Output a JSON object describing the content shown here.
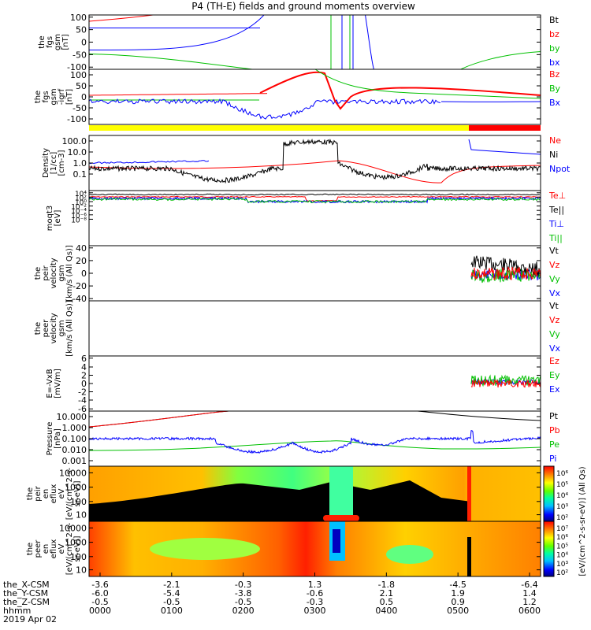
{
  "title": "P4 (TH-E) fields and ground moments overview",
  "colors": {
    "black": "#000000",
    "red": "#ff0000",
    "green": "#00c000",
    "blue": "#0000ff",
    "yellow": "#ffff00"
  },
  "chart_data": [
    {
      "type": "line",
      "panel": "fgs_gsm",
      "ylabel": [
        "the",
        "fgs",
        "gsm",
        "[nT]"
      ],
      "ylim": [
        -100,
        100
      ],
      "ticks": [
        "100",
        "50",
        "0",
        "-50",
        "-100"
      ],
      "legend": [
        {
          "name": "Bt",
          "color": "black"
        },
        {
          "name": "bz",
          "color": "red"
        },
        {
          "name": "by",
          "color": "green"
        },
        {
          "name": "bx",
          "color": "blue"
        }
      ]
    },
    {
      "type": "line",
      "panel": "fgs_gsm_igrf",
      "ylabel": [
        "the",
        "fgs",
        "gsm",
        "-igrf",
        "[nT]"
      ],
      "ylim": [
        -125,
        125
      ],
      "ticks": [
        "100",
        "50",
        "0",
        "-50",
        "-100"
      ],
      "legend": [
        {
          "name": "Bz",
          "color": "red"
        },
        {
          "name": "By",
          "color": "green"
        },
        {
          "name": "Bx",
          "color": "blue"
        }
      ]
    },
    {
      "type": "line",
      "panel": "density",
      "ylabel": [
        "Density",
        "[1/cc]",
        "[cm-3]"
      ],
      "scale": "log",
      "ylim": [
        0.02,
        200
      ],
      "ticks": [
        "100.0",
        "10.0",
        "1.0",
        "0.1"
      ],
      "legend": [
        {
          "name": "Ne",
          "color": "red"
        },
        {
          "name": "Ni",
          "color": "black"
        },
        {
          "name": "Npot",
          "color": "blue"
        }
      ]
    },
    {
      "type": "line",
      "panel": "temperature",
      "ylabel": [
        "moqt3",
        "[eV]"
      ],
      "scale": "log",
      "ticks": [
        "10⁴",
        "10²",
        "10⁰",
        "10⁻²",
        "10⁻⁴",
        "10⁻⁶",
        "10⁻⁸"
      ],
      "legend": [
        {
          "name": "Te⊥",
          "color": "red"
        },
        {
          "name": "Te||",
          "color": "black"
        },
        {
          "name": "Ti⊥",
          "color": "blue"
        },
        {
          "name": "Ti||",
          "color": "green"
        }
      ]
    },
    {
      "type": "line",
      "panel": "peir_velocity",
      "ylabel": [
        "the",
        "peir",
        "velocity",
        "gsm",
        "[km/s (All Qs)]"
      ],
      "ylim": [
        -40,
        40
      ],
      "ticks": [
        "40",
        "20",
        "0",
        "-20",
        "-40"
      ],
      "legend": [
        {
          "name": "Vt",
          "color": "black"
        },
        {
          "name": "Vz",
          "color": "red"
        },
        {
          "name": "Vy",
          "color": "green"
        },
        {
          "name": "Vx",
          "color": "blue"
        }
      ]
    },
    {
      "type": "line",
      "panel": "peer_velocity",
      "ylabel": [
        "the",
        "peer",
        "velocity",
        "gsm",
        "[km/s (All Qs)]"
      ],
      "legend": [
        {
          "name": "Vt",
          "color": "black"
        },
        {
          "name": "Vz",
          "color": "red"
        },
        {
          "name": "Vy",
          "color": "green"
        },
        {
          "name": "Vx",
          "color": "blue"
        }
      ]
    },
    {
      "type": "line",
      "panel": "e_vxb",
      "ylabel": [
        "E=-VxB",
        "[mV/m]"
      ],
      "ylim": [
        -6,
        6
      ],
      "ticks": [
        "6",
        "4",
        "2",
        "0",
        "-2",
        "-4",
        "-6"
      ],
      "legend": [
        {
          "name": "Ez",
          "color": "red"
        },
        {
          "name": "Ey",
          "color": "green"
        },
        {
          "name": "Ex",
          "color": "blue"
        }
      ]
    },
    {
      "type": "line",
      "panel": "pressure",
      "ylabel": [
        "Pressure",
        "[nPa]"
      ],
      "scale": "log",
      "ylim": [
        0.001,
        30
      ],
      "ticks": [
        "10.000",
        "1.000",
        "0.100",
        "0.010",
        "0.001"
      ],
      "legend": [
        {
          "name": "Pt",
          "color": "black"
        },
        {
          "name": "Pb",
          "color": "red"
        },
        {
          "name": "Pe",
          "color": "green"
        },
        {
          "name": "Pi",
          "color": "blue"
        }
      ]
    },
    {
      "type": "heatmap",
      "panel": "peir_en_eflux",
      "ylabel": [
        "the",
        "peir",
        "en",
        "eflux",
        "eV",
        "[eV/(cm^2-s-",
        "sr-eV)]"
      ],
      "scale": "log",
      "ticks": [
        "10000",
        "1000",
        "100",
        "10"
      ]
    },
    {
      "type": "heatmap",
      "panel": "peer_en_eflux",
      "ylabel": [
        "the",
        "peer",
        "en",
        "eflux",
        "eV",
        "[eV/(cm^2-s-",
        "sr-eV)]"
      ],
      "scale": "log",
      "ticks": [
        "10000",
        "1000",
        "100",
        "10"
      ]
    }
  ],
  "colorbar": {
    "label": "[eV/(cm^2-s-sr-eV)] (All Qs)",
    "top_ticks": [
      "10⁶",
      "10⁵",
      "10⁴",
      "10³",
      "10²"
    ],
    "bottom_ticks": [
      "10⁷",
      "10⁶",
      "10⁵",
      "10⁴",
      "10³",
      "10²"
    ]
  },
  "xaxis": {
    "row_labels": [
      "the_X-CSM",
      "the_Y-CSM",
      "the_Z-CSM",
      "hhmm",
      "2019 Apr 02"
    ],
    "ticks": [
      {
        "x": "-3.6",
        "y": "-6.0",
        "z": "-0.5",
        "t": "0000"
      },
      {
        "x": "-2.1",
        "y": "-5.4",
        "z": "-0.5",
        "t": "0100"
      },
      {
        "x": "-0.3",
        "y": "-3.8",
        "z": "-0.5",
        "t": "0200"
      },
      {
        "x": "1.3",
        "y": "-0.6",
        "z": "-0.3",
        "t": "0300"
      },
      {
        "x": "-1.8",
        "y": "2.1",
        "z": "0.5",
        "t": "0400"
      },
      {
        "x": "-4.5",
        "y": "1.9",
        "z": "0.9",
        "t": "0500"
      },
      {
        "x": "-6.4",
        "y": "1.4",
        "z": "1.2",
        "t": "0600"
      }
    ]
  }
}
